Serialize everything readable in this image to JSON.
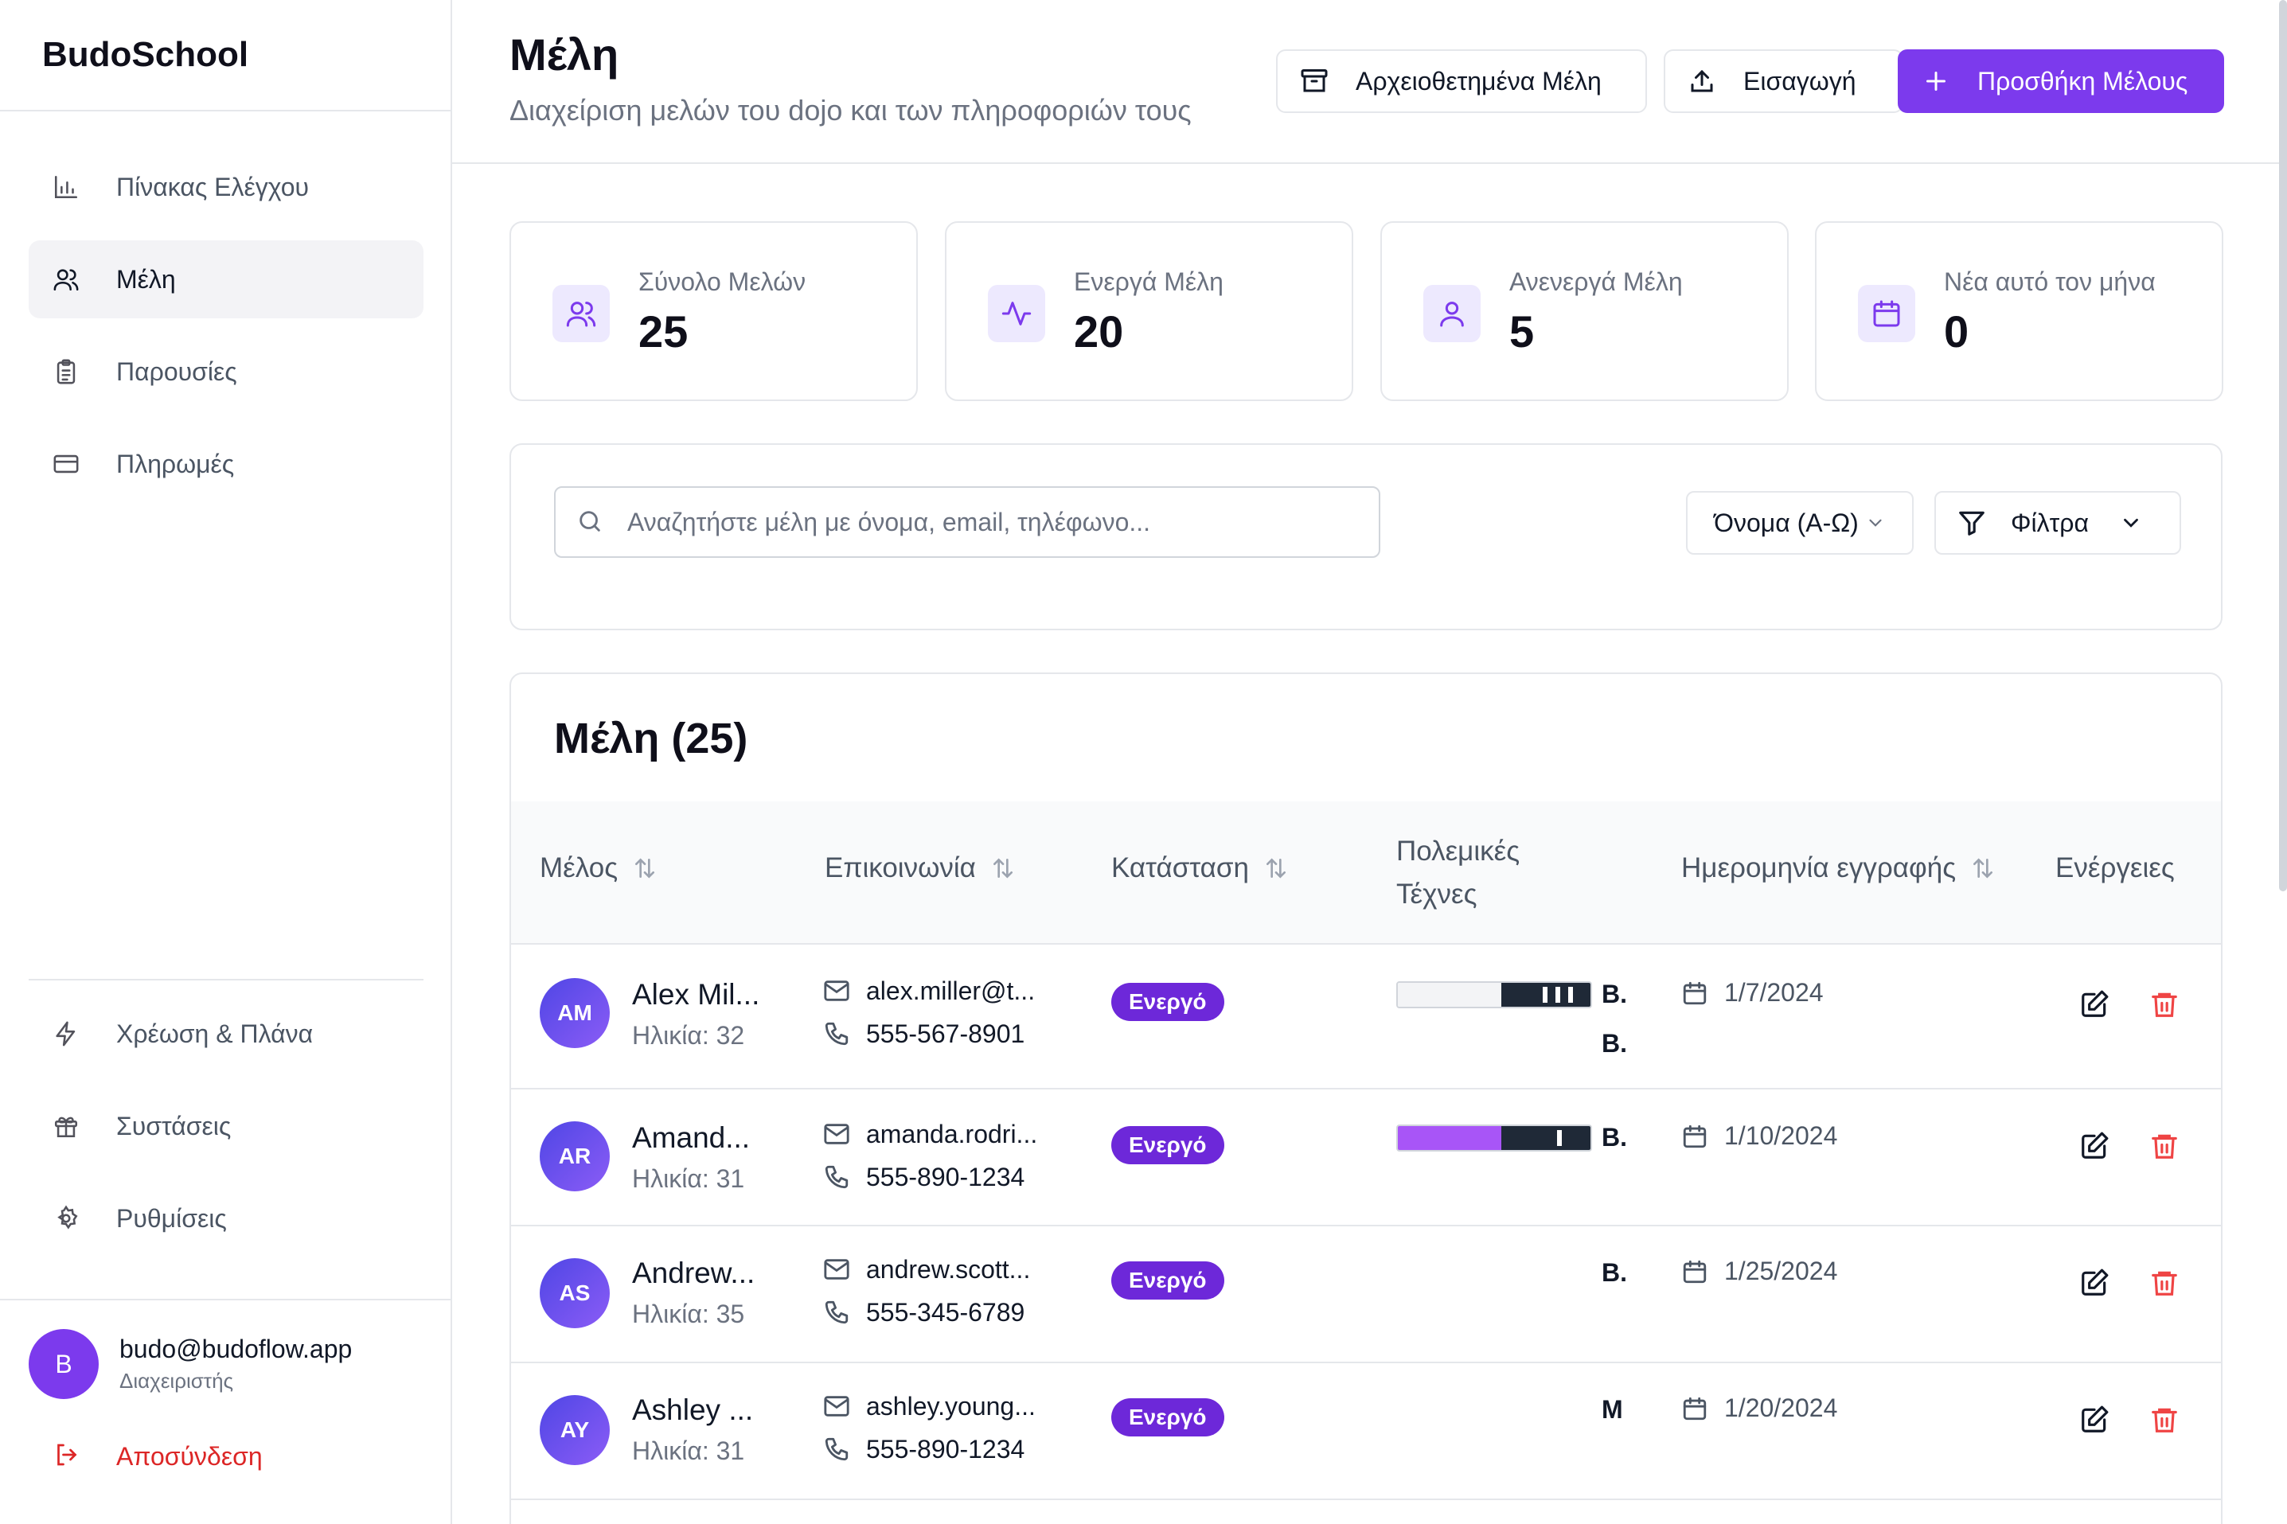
{
  "app": {
    "brand": "BudoSchool"
  },
  "sidebar": {
    "nav_top": [
      {
        "label": "Πίνακας Ελέγχου",
        "icon": "bar-chart-icon",
        "active": false
      },
      {
        "label": "Μέλη",
        "icon": "users-icon",
        "active": true
      },
      {
        "label": "Παρουσίες",
        "icon": "clipboard-icon",
        "active": false
      },
      {
        "label": "Πληρωμές",
        "icon": "credit-card-icon",
        "active": false
      }
    ],
    "nav_bottom": [
      {
        "label": "Χρέωση & Πλάνα",
        "icon": "bolt-icon"
      },
      {
        "label": "Συστάσεις",
        "icon": "gift-icon"
      },
      {
        "label": "Ρυθμίσεις",
        "icon": "gear-icon"
      }
    ],
    "user": {
      "initial": "B",
      "email": "budo@budoflow.app",
      "role": "Διαχειριστής"
    },
    "logout_label": "Αποσύνδεση"
  },
  "header": {
    "title": "Μέλη",
    "subtitle": "Διαχείριση μελών του dojo και των πληροφοριών τους",
    "archived_label": "Αρχειοθετημένα Μέλη",
    "import_label": "Εισαγωγή",
    "add_label": "Προσθήκη Μέλους"
  },
  "stats": [
    {
      "label": "Σύνολο Μελών",
      "value": "25",
      "icon": "users-icon"
    },
    {
      "label": "Ενεργά Μέλη",
      "value": "20",
      "icon": "activity-icon"
    },
    {
      "label": "Ανενεργά Μέλη",
      "value": "5",
      "icon": "user-icon"
    },
    {
      "label": "Νέα αυτό τον μήνα",
      "value": "0",
      "icon": "calendar-icon"
    }
  ],
  "search": {
    "placeholder": "Αναζητήστε μέλη με όνομα, email, τηλέφωνο...",
    "sort_label": "Όνομα (Α-Ω)",
    "filter_label": "Φίλτρα"
  },
  "members": {
    "title": "Μέλη (25)",
    "columns": {
      "member": "Μέλος",
      "contact": "Επικοινωνία",
      "status": "Κατάσταση",
      "arts": "Πολεμικές Τέχνες",
      "joined": "Ημερομηνία εγγραφής",
      "actions": "Ενέργειες"
    },
    "rows": [
      {
        "initials": "AM",
        "name": "Alex Mil...",
        "age": "Ηλικία: 32",
        "email": "alex.miller@t...",
        "phone": "555-567-8901",
        "status": "Ενεργό",
        "art1": "Β.",
        "art2": "Β.",
        "belt": "white-black",
        "joined": "1/7/2024"
      },
      {
        "initials": "AR",
        "name": "Amand...",
        "age": "Ηλικία: 31",
        "email": "amanda.rodri...",
        "phone": "555-890-1234",
        "status": "Ενεργό",
        "art1": "Β.",
        "art2": "",
        "belt": "purple-black",
        "joined": "1/10/2024"
      },
      {
        "initials": "AS",
        "name": "Andrew...",
        "age": "Ηλικία: 35",
        "email": "andrew.scott...",
        "phone": "555-345-6789",
        "status": "Ενεργό",
        "art1": "Β.",
        "art2": "",
        "belt": "none",
        "joined": "1/25/2024"
      },
      {
        "initials": "AY",
        "name": "Ashley ...",
        "age": "Ηλικία: 31",
        "email": "ashley.young...",
        "phone": "555-890-1234",
        "status": "Ενεργό",
        "art1": "Μ",
        "art2": "",
        "belt": "none",
        "joined": "1/20/2024"
      }
    ]
  },
  "colors": {
    "accent": "#7c3aed",
    "danger": "#ef4444",
    "belt_purple": "#a855f7",
    "belt_white": "#f3f4f6"
  }
}
